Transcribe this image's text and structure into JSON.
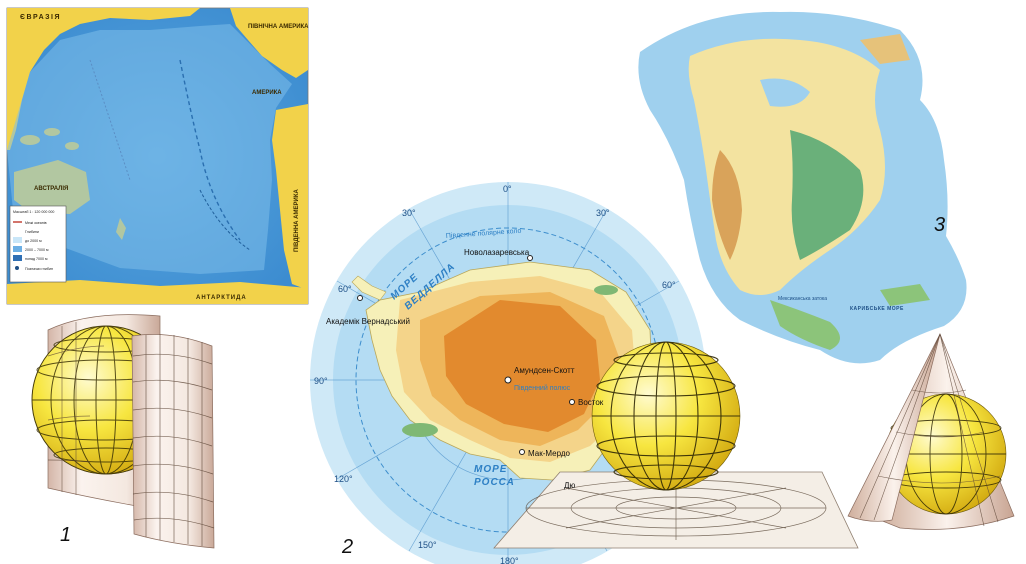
{
  "pacific_map": {
    "labels": {
      "eurasia": "ЄВРАЗІЯ",
      "north_america": "ПІВНІЧНА АМЕРИКА",
      "america": "АМЕРИКА",
      "south_america": "ПІВДЕННА АМЕРИКА",
      "australia": "АВСТРАЛІЯ",
      "antarctica": "АНТАРКТИДА"
    },
    "legend": {
      "scale": "Масштаб 1 : 120 000 000",
      "rows": [
        "Межі океанів",
        "Глибини",
        "до 2000 м",
        "2000 – 7000 м",
        "понад 7000 м",
        "Позначки глибин"
      ]
    }
  },
  "antarctica_map": {
    "meridians": [
      "0°",
      "30°",
      "30°",
      "60°",
      "60°",
      "90°",
      "120°",
      "150°",
      "180°"
    ],
    "stations": {
      "novolazarevska": "Новолазаревська",
      "vernadsky": "Академік Вернадський",
      "amundsen_scott": "Амундсен-Скотт",
      "south_pole": "Південний полюс",
      "vostok": "Восток",
      "mcmurdo": "Мак-Мердо",
      "dumont": "Дю"
    },
    "seas": {
      "weddell_1": "МОРЕ",
      "weddell_2": "ВЕДДЕЛЛА",
      "ross_1": "МОРЕ",
      "ross_2": "РОССА"
    },
    "circle_label": "Південне полярне коло"
  },
  "north_america_map": {
    "labels": {
      "mexico_gulf": "Мексиканська затока",
      "caribbean": "КАРИБСЬКЕ МОРЕ"
    }
  },
  "figure_numbers": {
    "one": "1",
    "two": "2",
    "three": "3"
  },
  "colors": {
    "ocean_deep": "#4a9bd6",
    "ocean_shallow": "#a6d6f2",
    "land_yellow": "#f3d64e",
    "ice_orange": "#e28a2e",
    "globe_yellow": "#f3e23a"
  }
}
